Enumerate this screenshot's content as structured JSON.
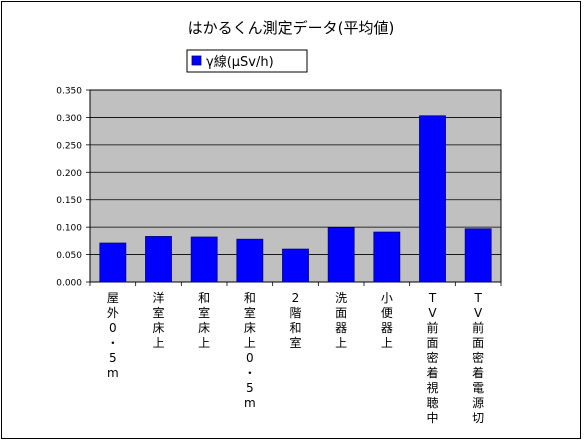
{
  "chart_data": {
    "type": "bar",
    "title": "はかるくん測定データ(平均値)",
    "legend": {
      "position": "top",
      "entries": [
        "γ線(μSv/h)"
      ]
    },
    "categories": [
      "屋外0・5m",
      "洋室床上",
      "和室床上",
      "和室床上0・5m",
      "2階和室",
      "洗面器上",
      "小便器上",
      "TV前面密着視聴中",
      "TV前面密着電源切"
    ],
    "series": [
      {
        "name": "γ線(μSv/h)",
        "values": [
          0.071,
          0.083,
          0.082,
          0.078,
          0.06,
          0.099,
          0.091,
          0.303,
          0.097
        ]
      }
    ],
    "yticks": [
      "0.000",
      "0.050",
      "0.100",
      "0.150",
      "0.200",
      "0.250",
      "0.300",
      "0.350"
    ],
    "ylim": [
      0,
      0.35
    ],
    "xlabel": "",
    "ylabel": "",
    "grid": true,
    "colors": {
      "bar": "#0000ff",
      "bar_stroke": "#000080",
      "plot_bg": "#c0c0c0",
      "grid": "#000000",
      "frame": "#000000"
    }
  }
}
